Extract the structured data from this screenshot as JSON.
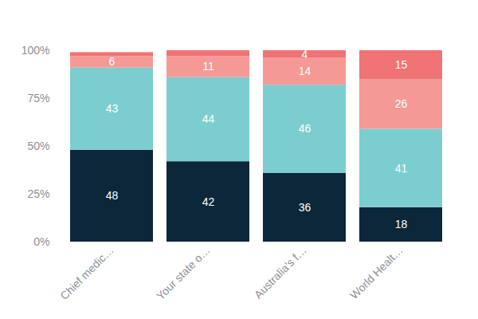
{
  "chart_data": {
    "type": "bar",
    "stacked": true,
    "data_labels": true,
    "grid": false,
    "categories": [
      "Chief medic…",
      "Your state o…",
      "Australia's f…",
      "World Healt…"
    ],
    "series": [
      {
        "color": "#0c263a",
        "values": [
          48,
          42,
          36,
          18
        ]
      },
      {
        "color": "#7ccdd0",
        "values": [
          43,
          44,
          46,
          41
        ]
      },
      {
        "color": "#f59997",
        "values": [
          6,
          11,
          14,
          26
        ]
      },
      {
        "color": "#f07376",
        "values": [
          2,
          3,
          4,
          15
        ],
        "value_labels": [
          null,
          null,
          "4",
          "15"
        ]
      }
    ],
    "ylim": [
      0,
      100
    ],
    "yticks": [
      {
        "value": 0,
        "label": "0%"
      },
      {
        "value": 25,
        "label": "25%"
      },
      {
        "value": 50,
        "label": "50%"
      },
      {
        "value": 75,
        "label": "75%"
      },
      {
        "value": 100,
        "label": "100%"
      }
    ]
  }
}
